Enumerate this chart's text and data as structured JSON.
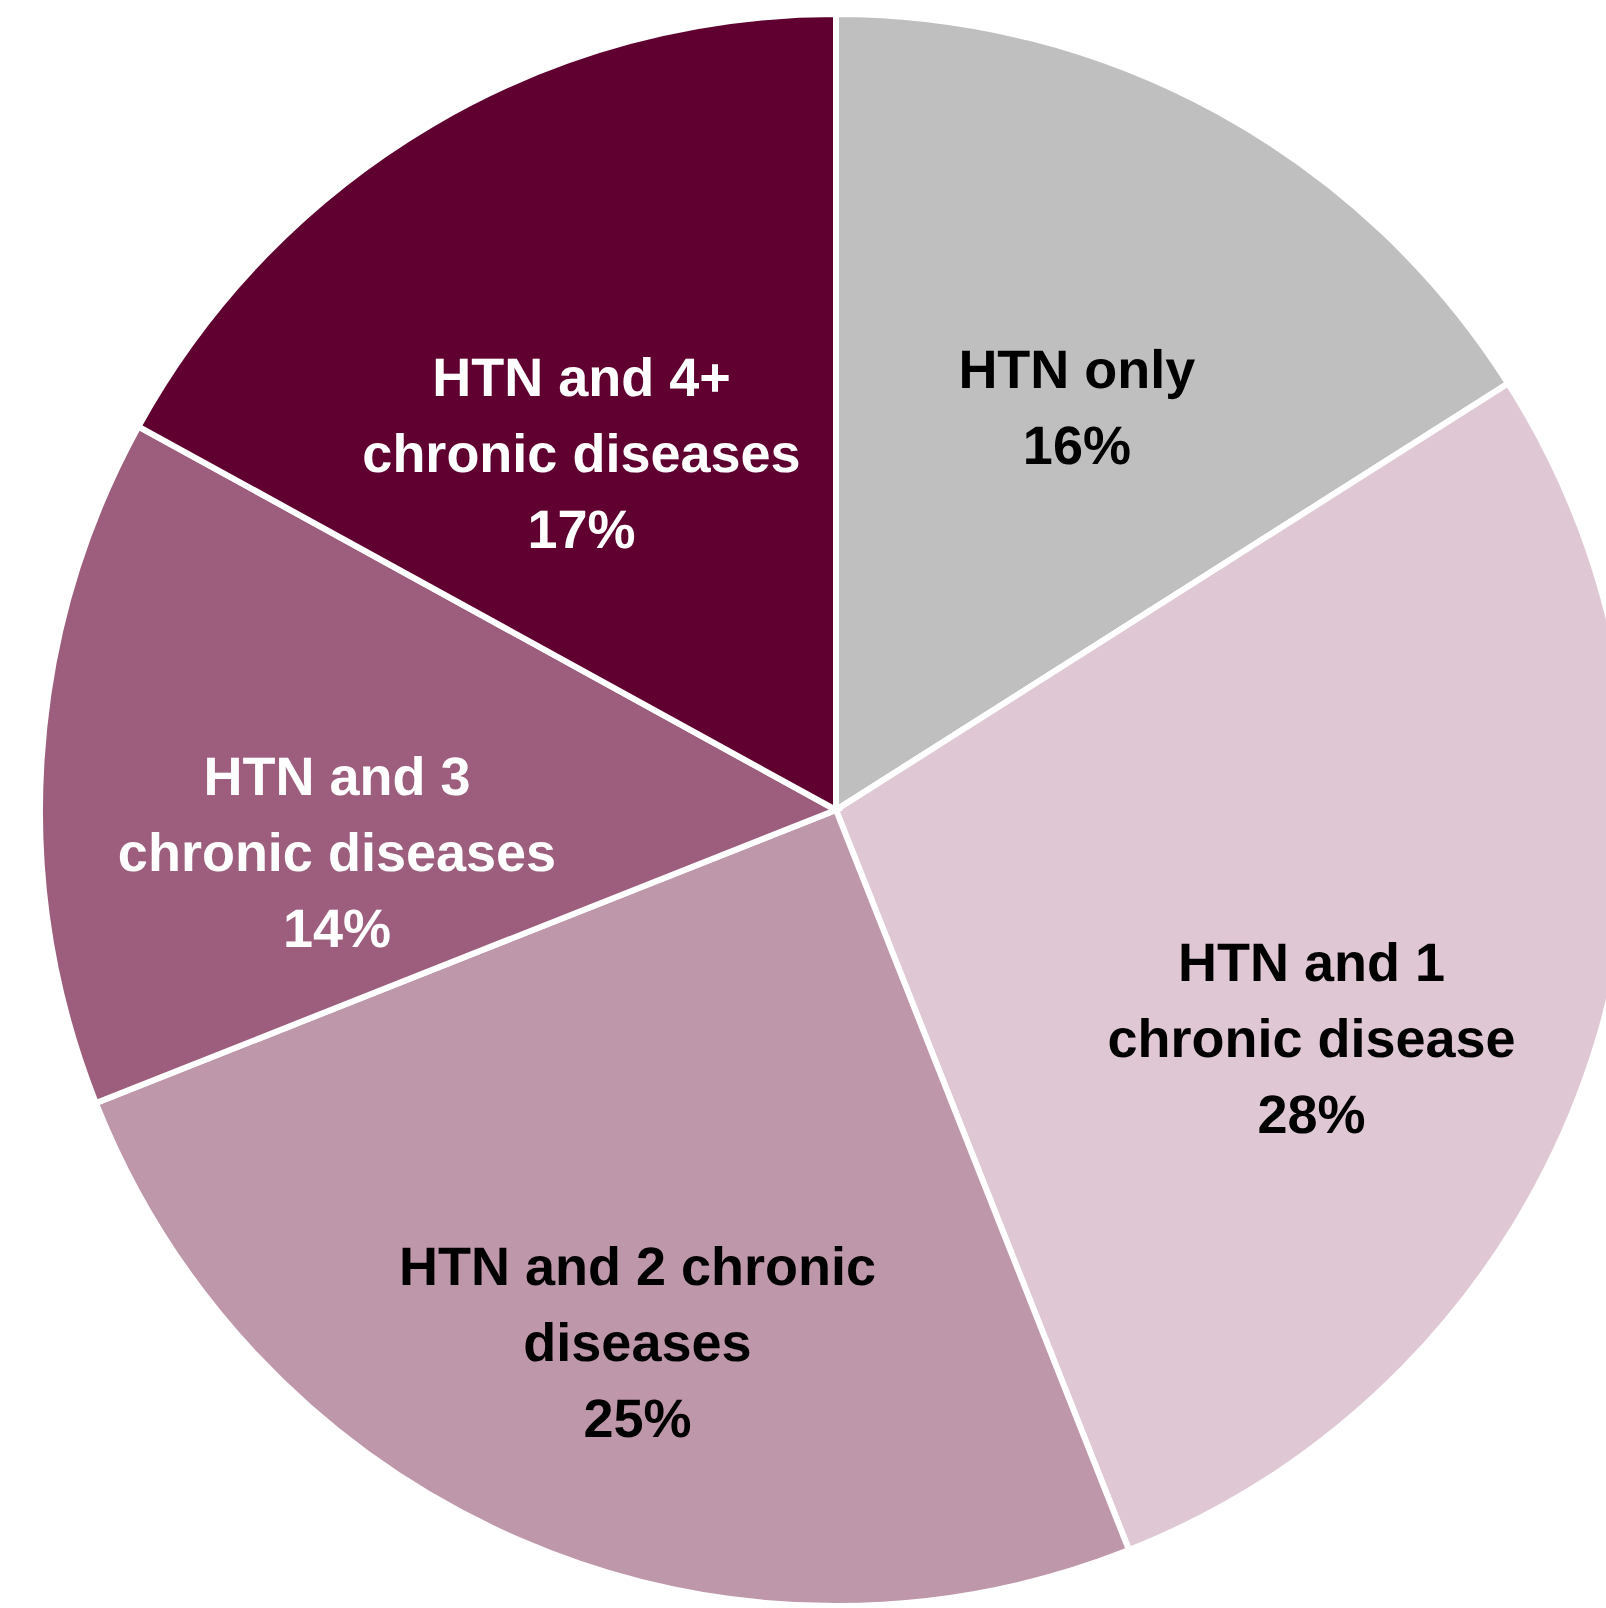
{
  "chart_data": {
    "type": "pie",
    "categories": [
      "HTN only",
      "HTN and 1\nchronic disease",
      "HTN and 2 chronic\ndiseases",
      "HTN and 3\nchronic diseases",
      "HTN and 4+\nchronic diseases"
    ],
    "values": [
      16,
      28,
      25,
      14,
      17
    ],
    "colors": [
      "#bfbfbf",
      "#dfc8d4",
      "#bf97ab",
      "#9c5e7c",
      "#600030"
    ],
    "value_labels": [
      "16%",
      "28%",
      "25%",
      "14%",
      "17%"
    ]
  }
}
